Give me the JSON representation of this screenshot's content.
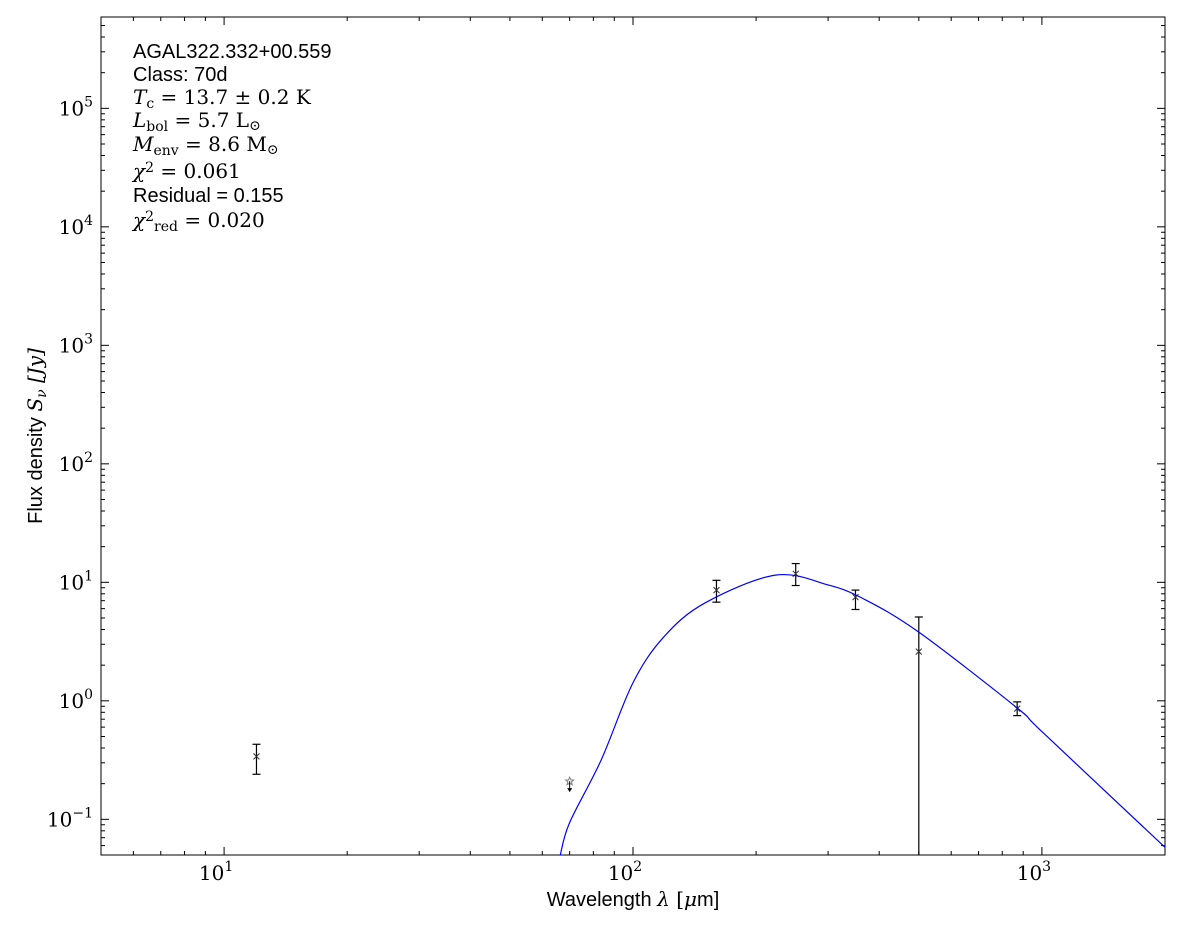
{
  "chart_data": {
    "type": "scatter",
    "xlabel": {
      "text": "Wavelength",
      "symbol": "λ",
      "unit_open": " [",
      "unit": "μ",
      "unit_rest": "m]"
    },
    "ylabel": {
      "text": "Flux density ",
      "symbol": "S",
      "sub": "ν",
      "unit": " [Jy]"
    },
    "xscale": "log",
    "yscale": "log",
    "xlim": [
      5,
      2000
    ],
    "ylim": [
      0.05,
      590000
    ],
    "x_ticks": [
      {
        "base": "10",
        "exp": "1",
        "value": 10
      },
      {
        "base": "10",
        "exp": "2",
        "value": 100
      },
      {
        "base": "10",
        "exp": "3",
        "value": 1000
      }
    ],
    "y_ticks": [
      {
        "base": "10",
        "exp": "−1",
        "value": 0.1
      },
      {
        "base": "10",
        "exp": "0",
        "value": 1
      },
      {
        "base": "10",
        "exp": "1",
        "value": 10
      },
      {
        "base": "10",
        "exp": "2",
        "value": 100
      },
      {
        "base": "10",
        "exp": "3",
        "value": 1000
      },
      {
        "base": "10",
        "exp": "4",
        "value": 10000
      },
      {
        "base": "10",
        "exp": "5",
        "value": 100000
      }
    ],
    "grid": false,
    "annotations": {
      "source": "AGAL322.332+00.559",
      "class": "Class: 70d",
      "tc": {
        "sym": "T",
        "sub": "c",
        "value": " = 13.7 ± 0.2 K"
      },
      "lbol": {
        "sym": "L",
        "sub": "bol",
        "value": " = 5.7 L",
        "unit_sub": "⊙"
      },
      "menv": {
        "sym": "M",
        "sub": "env",
        "value": " = 8.6 M",
        "unit_sub": "⊙"
      },
      "chi2": {
        "sym": "χ",
        "sup": "2",
        "value": " = 0.061"
      },
      "residual": "Residual = 0.155",
      "chi2red": {
        "sym": "χ",
        "sup": "2",
        "sub": "red",
        "value": " = 0.020"
      }
    },
    "series": [
      {
        "type": "errorbar",
        "color": "#000000",
        "marker": "x",
        "points": [
          {
            "x": 12,
            "y": 0.34,
            "y_low": 0.24,
            "y_high": 0.43
          },
          {
            "x": 160,
            "y": 8.6,
            "y_low": 6.8,
            "y_high": 10.4
          },
          {
            "x": 250,
            "y": 11.8,
            "y_low": 9.4,
            "y_high": 14.4
          },
          {
            "x": 350,
            "y": 7.5,
            "y_low": 5.9,
            "y_high": 8.6
          },
          {
            "x": 500,
            "y": 2.6,
            "y_low": 0,
            "y_high": 5.1
          },
          {
            "x": 870,
            "y": 0.86,
            "y_low": 0.75,
            "y_high": 0.98
          }
        ]
      },
      {
        "type": "upper_limit",
        "color": "#808080",
        "marker": "star",
        "points": [
          {
            "x": 70,
            "y": 0.21
          }
        ]
      },
      {
        "type": "line",
        "color": "#0000ff",
        "x": [
          66.4,
          70,
          83.6,
          100,
          119,
          150,
          223,
          300,
          365,
          500,
          870,
          1000,
          2000
        ],
        "y": [
          0.05,
          0.094,
          0.317,
          1.42,
          3.47,
          6.7,
          11.5,
          9.5,
          7.3,
          3.8,
          0.87,
          0.55,
          0.058
        ]
      }
    ]
  }
}
